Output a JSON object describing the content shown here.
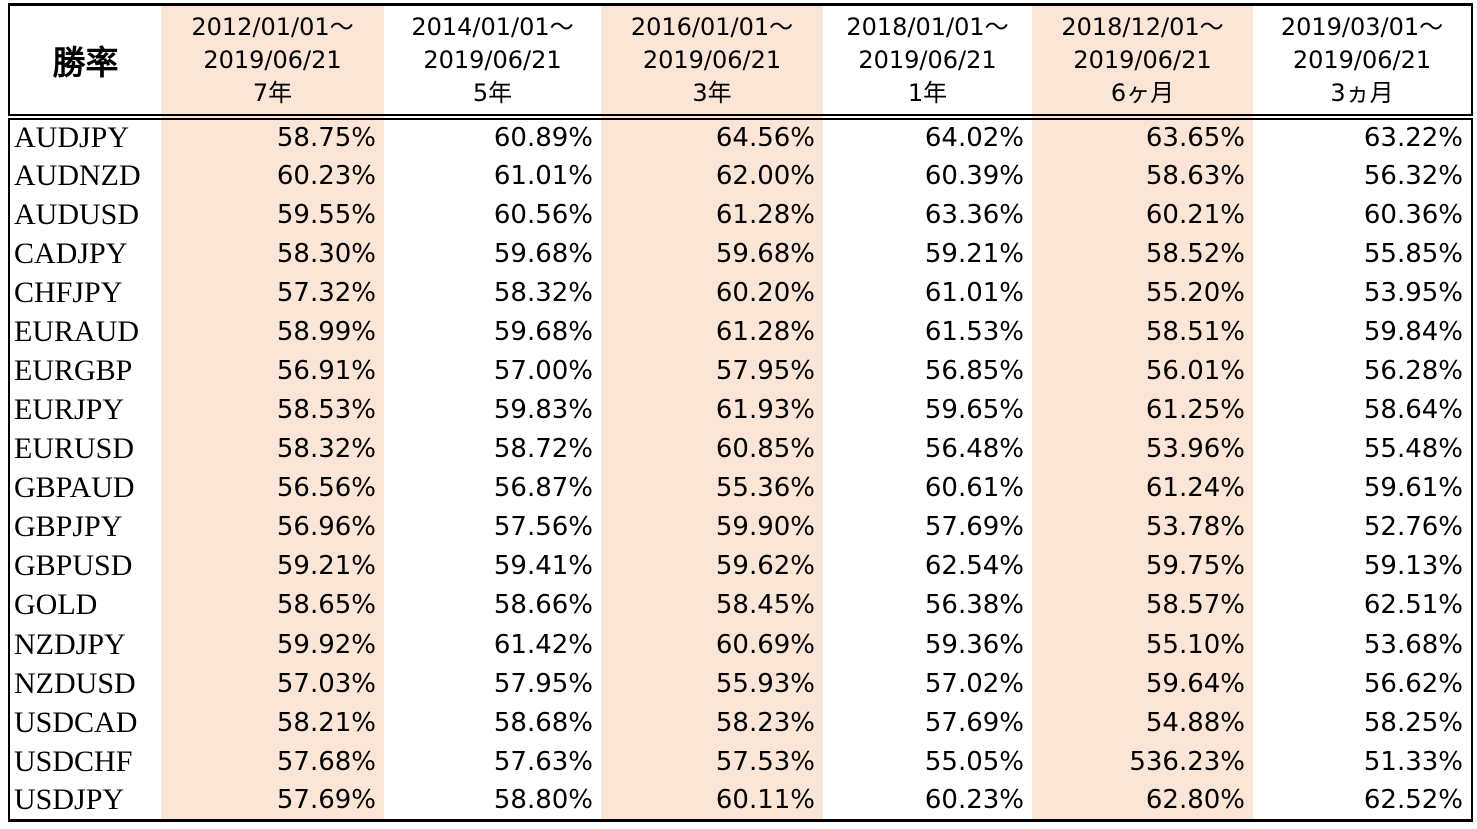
{
  "table": {
    "corner_label": "勝率",
    "highlight_color": "#fbe5d6",
    "columns": [
      {
        "date_from": "2012/01/01～",
        "date_to": "2019/06/21",
        "period": "7年",
        "highlighted": true
      },
      {
        "date_from": "2014/01/01～",
        "date_to": "2019/06/21",
        "period": "5年",
        "highlighted": false
      },
      {
        "date_from": "2016/01/01～",
        "date_to": "2019/06/21",
        "period": "3年",
        "highlighted": true
      },
      {
        "date_from": "2018/01/01～",
        "date_to": "2019/06/21",
        "period": "1年",
        "highlighted": false
      },
      {
        "date_from": "2018/12/01～",
        "date_to": "2019/06/21",
        "period": "6ヶ月",
        "highlighted": true
      },
      {
        "date_from": "2019/03/01～",
        "date_to": "2019/06/21",
        "period": "3ヵ月",
        "highlighted": false
      }
    ],
    "rows": [
      {
        "pair": "AUDJPY",
        "values": [
          "58.75%",
          "60.89%",
          "64.56%",
          "64.02%",
          "63.65%",
          "63.22%"
        ]
      },
      {
        "pair": "AUDNZD",
        "values": [
          "60.23%",
          "61.01%",
          "62.00%",
          "60.39%",
          "58.63%",
          "56.32%"
        ]
      },
      {
        "pair": "AUDUSD",
        "values": [
          "59.55%",
          "60.56%",
          "61.28%",
          "63.36%",
          "60.21%",
          "60.36%"
        ]
      },
      {
        "pair": "CADJPY",
        "values": [
          "58.30%",
          "59.68%",
          "59.68%",
          "59.21%",
          "58.52%",
          "55.85%"
        ]
      },
      {
        "pair": "CHFJPY",
        "values": [
          "57.32%",
          "58.32%",
          "60.20%",
          "61.01%",
          "55.20%",
          "53.95%"
        ]
      },
      {
        "pair": "EURAUD",
        "values": [
          "58.99%",
          "59.68%",
          "61.28%",
          "61.53%",
          "58.51%",
          "59.84%"
        ]
      },
      {
        "pair": "EURGBP",
        "values": [
          "56.91%",
          "57.00%",
          "57.95%",
          "56.85%",
          "56.01%",
          "56.28%"
        ]
      },
      {
        "pair": "EURJPY",
        "values": [
          "58.53%",
          "59.83%",
          "61.93%",
          "59.65%",
          "61.25%",
          "58.64%"
        ]
      },
      {
        "pair": "EURUSD",
        "values": [
          "58.32%",
          "58.72%",
          "60.85%",
          "56.48%",
          "53.96%",
          "55.48%"
        ]
      },
      {
        "pair": "GBPAUD",
        "values": [
          "56.56%",
          "56.87%",
          "55.36%",
          "60.61%",
          "61.24%",
          "59.61%"
        ]
      },
      {
        "pair": "GBPJPY",
        "values": [
          "56.96%",
          "57.56%",
          "59.90%",
          "57.69%",
          "53.78%",
          "52.76%"
        ]
      },
      {
        "pair": "GBPUSD",
        "values": [
          "59.21%",
          "59.41%",
          "59.62%",
          "62.54%",
          "59.75%",
          "59.13%"
        ]
      },
      {
        "pair": "GOLD",
        "values": [
          "58.65%",
          "58.66%",
          "58.45%",
          "56.38%",
          "58.57%",
          "62.51%"
        ]
      },
      {
        "pair": "NZDJPY",
        "values": [
          "59.92%",
          "61.42%",
          "60.69%",
          "59.36%",
          "55.10%",
          "53.68%"
        ]
      },
      {
        "pair": "NZDUSD",
        "values": [
          "57.03%",
          "57.95%",
          "55.93%",
          "57.02%",
          "59.64%",
          "56.62%"
        ]
      },
      {
        "pair": "USDCAD",
        "values": [
          "58.21%",
          "58.68%",
          "58.23%",
          "57.69%",
          "54.88%",
          "58.25%"
        ]
      },
      {
        "pair": "USDCHF",
        "values": [
          "57.68%",
          "57.63%",
          "57.53%",
          "55.05%",
          "536.23%",
          "51.33%"
        ]
      },
      {
        "pair": "USDJPY",
        "values": [
          "57.69%",
          "58.80%",
          "60.11%",
          "60.23%",
          "62.80%",
          "62.52%"
        ]
      }
    ]
  },
  "chart_data": {
    "type": "table",
    "title": "勝率",
    "columns": [
      "2012/01/01～2019/06/21 7年",
      "2014/01/01～2019/06/21 5年",
      "2016/01/01～2019/06/21 3年",
      "2018/01/01～2019/06/21 1年",
      "2018/12/01～2019/06/21 6ヶ月",
      "2019/03/01～2019/06/21 3ヵ月"
    ],
    "row_labels": [
      "AUDJPY",
      "AUDNZD",
      "AUDUSD",
      "CADJPY",
      "CHFJPY",
      "EURAUD",
      "EURGBP",
      "EURJPY",
      "EURUSD",
      "GBPAUD",
      "GBPJPY",
      "GBPUSD",
      "GOLD",
      "NZDJPY",
      "NZDUSD",
      "USDCAD",
      "USDCHF",
      "USDJPY"
    ],
    "values_percent": [
      [
        58.75,
        60.89,
        64.56,
        64.02,
        63.65,
        63.22
      ],
      [
        60.23,
        61.01,
        62.0,
        60.39,
        58.63,
        56.32
      ],
      [
        59.55,
        60.56,
        61.28,
        63.36,
        60.21,
        60.36
      ],
      [
        58.3,
        59.68,
        59.68,
        59.21,
        58.52,
        55.85
      ],
      [
        57.32,
        58.32,
        60.2,
        61.01,
        55.2,
        53.95
      ],
      [
        58.99,
        59.68,
        61.28,
        61.53,
        58.51,
        59.84
      ],
      [
        56.91,
        57.0,
        57.95,
        56.85,
        56.01,
        56.28
      ],
      [
        58.53,
        59.83,
        61.93,
        59.65,
        61.25,
        58.64
      ],
      [
        58.32,
        58.72,
        60.85,
        56.48,
        53.96,
        55.48
      ],
      [
        56.56,
        56.87,
        55.36,
        60.61,
        61.24,
        59.61
      ],
      [
        56.96,
        57.56,
        59.9,
        57.69,
        53.78,
        52.76
      ],
      [
        59.21,
        59.41,
        59.62,
        62.54,
        59.75,
        59.13
      ],
      [
        58.65,
        58.66,
        58.45,
        56.38,
        58.57,
        62.51
      ],
      [
        59.92,
        61.42,
        60.69,
        59.36,
        55.1,
        53.68
      ],
      [
        57.03,
        57.95,
        55.93,
        57.02,
        59.64,
        56.62
      ],
      [
        58.21,
        58.68,
        58.23,
        57.69,
        54.88,
        58.25
      ],
      [
        57.68,
        57.63,
        57.53,
        55.05,
        536.23,
        51.33
      ],
      [
        57.69,
        58.8,
        60.11,
        60.23,
        62.8,
        62.52
      ]
    ],
    "highlighted_columns": [
      0,
      2,
      4
    ],
    "highlight_color": "#fbe5d6",
    "grid": "outer-border-and-header-double-rule-only",
    "legend_position": "none"
  }
}
